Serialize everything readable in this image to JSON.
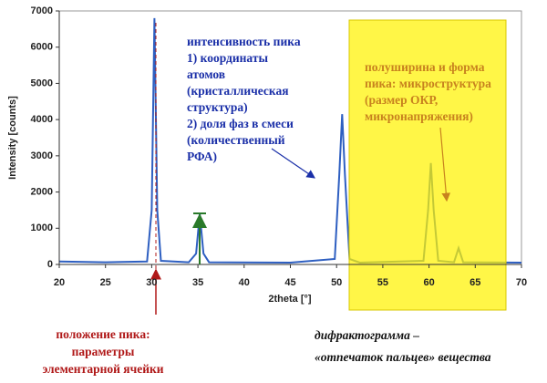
{
  "chart_data": {
    "type": "line",
    "x": [
      20,
      25,
      29.5,
      30.0,
      30.3,
      30.6,
      31.0,
      34,
      34.8,
      35.2,
      35.6,
      36.2,
      45,
      49.8,
      50.3,
      50.6,
      50.9,
      51.4,
      52.5,
      59.4,
      59.9,
      60.2,
      60.5,
      61,
      62.7,
      63.2,
      63.7,
      70
    ],
    "series": [
      {
        "color": "#2e5fc1",
        "values": [
          80,
          60,
          80,
          1500,
          6800,
          1500,
          100,
          60,
          300,
          1400,
          300,
          60,
          50,
          150,
          2500,
          4150,
          2500,
          150,
          50,
          100,
          1500,
          2800,
          1500,
          100,
          60,
          450,
          60,
          50
        ]
      }
    ],
    "xlim": [
      20,
      70
    ],
    "xticks": [
      20,
      25,
      30,
      35,
      40,
      45,
      50,
      55,
      60,
      65,
      70
    ],
    "ylim": [
      0,
      7000
    ],
    "yticks": [
      0,
      1000,
      2000,
      3000,
      4000,
      5000,
      6000,
      7000
    ],
    "xlabel": "2theta [°]",
    "ylabel": "Intensity [counts]",
    "annotations": [
      {
        "color": "#1a2fa8",
        "lines": [
          "интенсивность пика",
          "1) координаты",
          "атомов",
          "(кристаллическая",
          "структура)",
          "2) доля фаз в смеси",
          "(количественный",
          "РФА)"
        ]
      },
      {
        "color": "#c8821e",
        "lines": [
          "полуширина и форма",
          "пика: микроструктура",
          "(размер ОКР,",
          "микронапряжения)"
        ]
      },
      {
        "color": "#b01818",
        "lines": [
          "положение пика:",
          "параметры",
          "элементарной ячейки"
        ]
      },
      {
        "color": "#111111",
        "lines": [
          "дифрактограмма –",
          "«отпечаток пальцев» вещества"
        ]
      }
    ]
  }
}
